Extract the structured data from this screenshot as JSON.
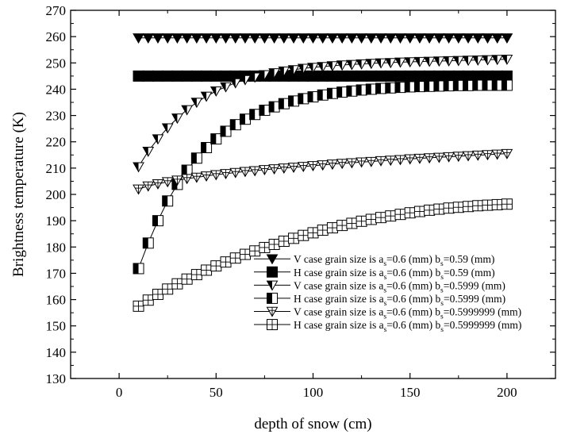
{
  "chart_data": {
    "type": "scatter",
    "title": "",
    "xlabel": "depth of snow (cm)",
    "ylabel": "Brightness temperature (K)",
    "xlim": [
      -25,
      225
    ],
    "ylim": [
      130,
      270
    ],
    "xticks": [
      0,
      50,
      100,
      150,
      200
    ],
    "yticks": [
      130,
      140,
      150,
      160,
      170,
      180,
      190,
      200,
      210,
      220,
      230,
      240,
      250,
      260,
      270
    ],
    "grid": false,
    "legend_position": "bottom-right",
    "x": [
      10,
      15,
      20,
      25,
      30,
      35,
      40,
      45,
      50,
      55,
      60,
      65,
      70,
      75,
      80,
      85,
      90,
      95,
      100,
      105,
      110,
      115,
      120,
      125,
      130,
      135,
      140,
      145,
      150,
      155,
      160,
      165,
      170,
      175,
      180,
      185,
      190,
      195,
      200
    ],
    "series": [
      {
        "legend": {
          "prefix": "V case grain size is a",
          "sub1": "s",
          "mid": "=0.6 (mm) b",
          "sub2": "s",
          "suffix": "=0.59 (mm)"
        },
        "marker": "triangle-down-filled",
        "values": [
          259.5,
          259.5,
          259.5,
          259.5,
          259.5,
          259.5,
          259.5,
          259.5,
          259.5,
          259.5,
          259.5,
          259.5,
          259.5,
          259.5,
          259.5,
          259.5,
          259.5,
          259.5,
          259.5,
          259.5,
          259.5,
          259.5,
          259.5,
          259.5,
          259.5,
          259.5,
          259.5,
          259.5,
          259.5,
          259.5,
          259.5,
          259.5,
          259.5,
          259.5,
          259.5,
          259.5,
          259.5,
          259.5,
          259.5
        ]
      },
      {
        "legend": {
          "prefix": "H case grain size is a",
          "sub1": "s",
          "mid": "=0.6 (mm) b",
          "sub2": "s",
          "suffix": "=0.59 (mm)"
        },
        "marker": "square-filled",
        "values": [
          245,
          245,
          245,
          245,
          245,
          245,
          245,
          245,
          245,
          245,
          245,
          245,
          245,
          245,
          245,
          245,
          245,
          245,
          245,
          245,
          245,
          245,
          245,
          245,
          245,
          245,
          245,
          245,
          245,
          245,
          245,
          245,
          245,
          245,
          245,
          245,
          245,
          245,
          245
        ]
      },
      {
        "legend": {
          "prefix": "V case grain size is a",
          "sub1": "s",
          "mid": "=0.6 (mm) b",
          "sub2": "s",
          "suffix": "=0.5999 (mm)"
        },
        "marker": "triangle-down-half",
        "values": [
          210.5,
          216.4,
          221.1,
          225.3,
          229.0,
          232.2,
          235.0,
          237.3,
          239.3,
          240.9,
          242.4,
          243.6,
          244.6,
          245.5,
          246.2,
          246.9,
          247.4,
          247.9,
          248.3,
          248.6,
          248.9,
          249.2,
          249.4,
          249.6,
          249.8,
          250.0,
          250.1,
          250.3,
          250.4,
          250.5,
          250.6,
          250.7,
          250.8,
          250.9,
          251.0,
          251.1,
          251.2,
          251.3,
          251.4
        ]
      },
      {
        "legend": {
          "prefix": "H case grain size is a",
          "sub1": "s",
          "mid": "=0.6 (mm) b",
          "sub2": "s",
          "suffix": "=0.5999 (mm)"
        },
        "marker": "square-half",
        "values": [
          171.8,
          181.5,
          190.0,
          197.5,
          203.8,
          209.2,
          213.8,
          217.8,
          221.1,
          224.0,
          226.5,
          228.6,
          230.4,
          232.0,
          233.3,
          234.5,
          235.5,
          236.4,
          237.1,
          237.8,
          238.4,
          238.9,
          239.3,
          239.7,
          240.0,
          240.3,
          240.5,
          240.7,
          240.9,
          241.0,
          241.1,
          241.2,
          241.3,
          241.4,
          241.4,
          241.5,
          241.5,
          241.5,
          241.5
        ]
      },
      {
        "legend": {
          "prefix": "V case grain size is a",
          "sub1": "s",
          "mid": "=0.6 (mm) b",
          "sub2": "s",
          "suffix": "=0.5999999 (mm)"
        },
        "marker": "triangle-down-open-plus",
        "values": [
          202.0,
          203.2,
          204.0,
          204.8,
          205.4,
          206.0,
          206.5,
          207.0,
          207.5,
          207.9,
          208.3,
          208.7,
          209.0,
          209.4,
          209.7,
          210.0,
          210.3,
          210.6,
          210.9,
          211.2,
          211.5,
          211.8,
          212.0,
          212.3,
          212.5,
          212.8,
          213.0,
          213.2,
          213.5,
          213.7,
          213.9,
          214.1,
          214.3,
          214.5,
          214.7,
          214.9,
          215.1,
          215.3,
          215.5
        ]
      },
      {
        "legend": {
          "prefix": "H case grain size is a",
          "sub1": "s",
          "mid": "=0.6 (mm) b",
          "sub2": "s",
          "suffix": "=0.5999999 (mm)"
        },
        "marker": "square-open-plus",
        "values": [
          157.5,
          159.8,
          162.0,
          164.0,
          166.0,
          167.8,
          169.5,
          171.2,
          172.8,
          174.3,
          175.8,
          177.2,
          178.5,
          179.8,
          181.0,
          182.2,
          183.3,
          184.4,
          185.4,
          186.4,
          187.3,
          188.2,
          189.0,
          189.8,
          190.5,
          191.2,
          191.8,
          192.4,
          193.0,
          193.5,
          194.0,
          194.4,
          194.8,
          195.1,
          195.4,
          195.7,
          195.9,
          196.1,
          196.3
        ]
      }
    ]
  }
}
